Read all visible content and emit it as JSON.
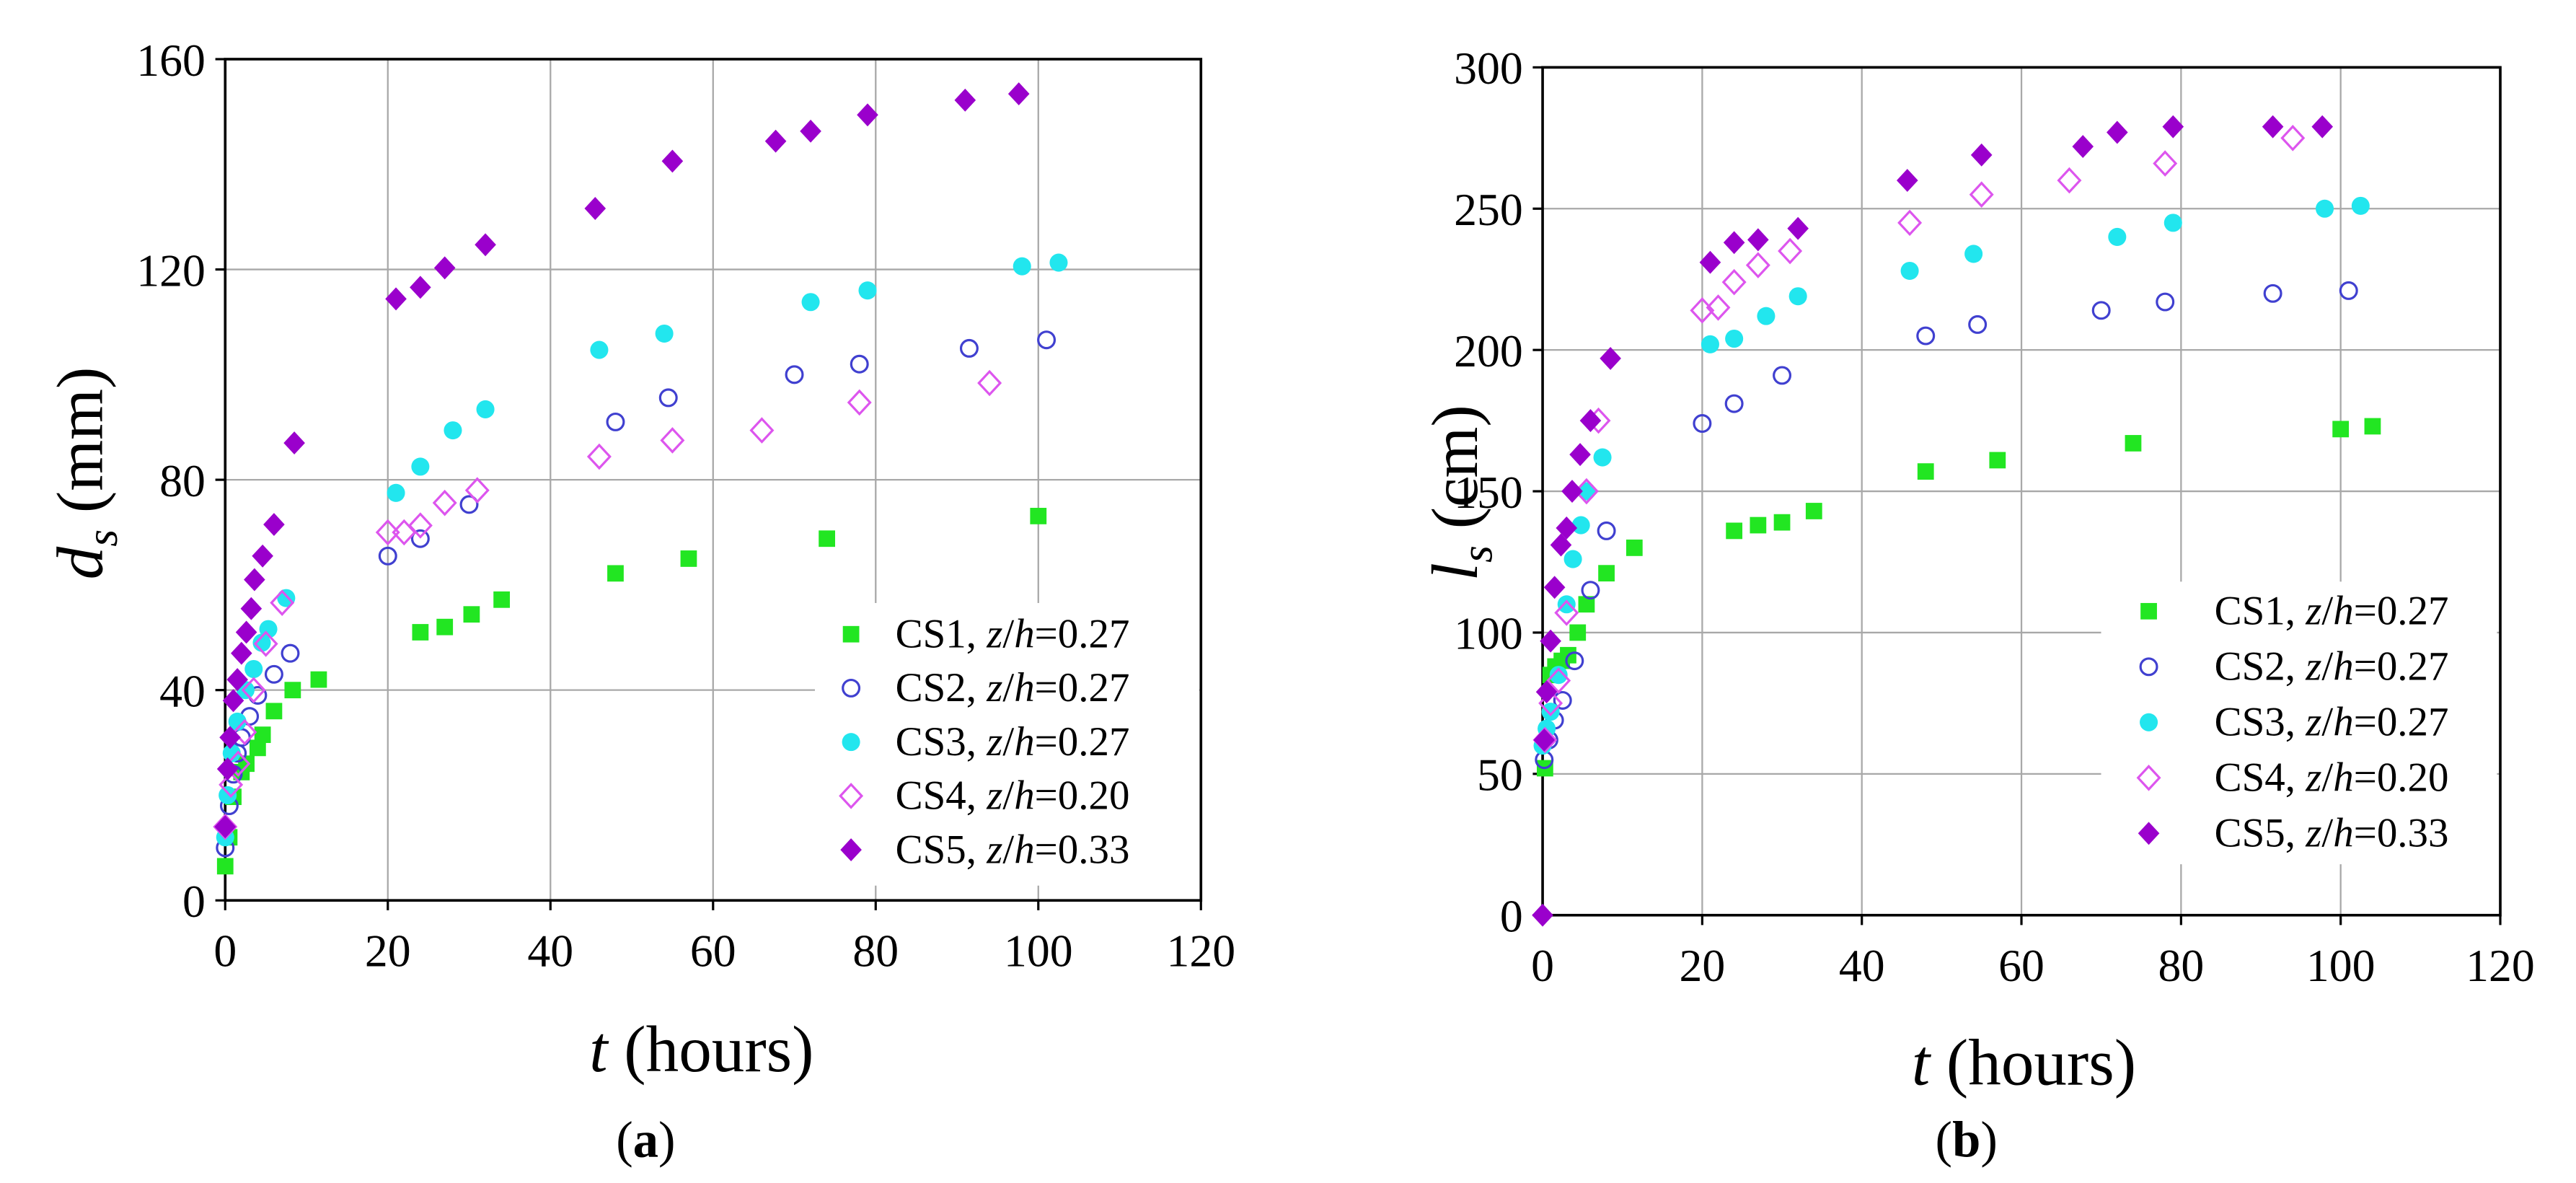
{
  "chart_data": [
    {
      "panel": "(a)",
      "type": "scatter",
      "xlabel": {
        "var": "t",
        "unit": " (hours)"
      },
      "ylabel": {
        "var": "d",
        "sub": "s",
        "unit": " (mm)"
      },
      "xlim": [
        0,
        120
      ],
      "ylim": [
        0,
        160
      ],
      "xticks": [
        0,
        20,
        40,
        60,
        80,
        100,
        120
      ],
      "yticks": [
        0,
        40,
        80,
        120,
        160
      ],
      "grid": true,
      "legend": "bottom-right",
      "series": [
        {
          "name": "CS1, z/h=0.27",
          "marker": "square",
          "filled": true,
          "color": "#22e622",
          "x": [
            0,
            0.5,
            1.0,
            2.0,
            2.6,
            4.0,
            4.6,
            6.0,
            8.3,
            11.5,
            24,
            27,
            30.3,
            34,
            48,
            57,
            74,
            100
          ],
          "y": [
            6.5,
            12,
            19.7,
            24.4,
            26,
            29,
            31.5,
            36,
            40,
            42,
            51,
            52,
            54.4,
            57.2,
            62.2,
            65,
            68.8,
            73.1
          ]
        },
        {
          "name": "CS2, z/h=0.27",
          "marker": "circle",
          "filled": false,
          "color": "#4040d0",
          "x": [
            0,
            0.5,
            1.0,
            1.5,
            2.0,
            3.0,
            4.0,
            6.0,
            8.0,
            20,
            24,
            30,
            48,
            54.5,
            70,
            78,
            91.5,
            101
          ],
          "y": [
            10,
            18,
            24,
            28,
            31,
            35,
            39,
            43,
            47,
            65.5,
            68.8,
            75.3,
            91,
            95.6,
            100,
            102,
            105,
            106.6
          ]
        },
        {
          "name": "CS3, z/h=0.27",
          "marker": "circle",
          "filled": true,
          "color": "#22e6ee",
          "x": [
            0,
            0.3,
            0.8,
            1.5,
            2.5,
            3.5,
            4.5,
            5.3,
            7.5,
            21,
            24,
            28,
            32,
            46,
            54,
            72,
            79,
            98,
            102.5
          ],
          "y": [
            12,
            20,
            28,
            34,
            40,
            44,
            49,
            51.6,
            57.5,
            77.5,
            82.5,
            89.4,
            93.4,
            104.7,
            107.8,
            113.8,
            116,
            120.6,
            121.3
          ]
        },
        {
          "name": "CS4, z/h=0.20",
          "marker": "diamond",
          "filled": false,
          "color": "#dd55ee",
          "x": [
            0,
            0.7,
            1.6,
            2.4,
            3.5,
            5.0,
            7.0,
            20,
            22,
            24,
            27,
            31,
            46,
            55,
            66,
            78,
            94
          ],
          "y": [
            14,
            22,
            26,
            32,
            40,
            48.8,
            56.6,
            70,
            70,
            71.3,
            75.6,
            78,
            84.4,
            87.5,
            89.4,
            94.7,
            98.4
          ]
        },
        {
          "name": "CS5, z/h=0.33",
          "marker": "diamond",
          "filled": true,
          "color": "#9a00cc",
          "x": [
            0,
            0.3,
            0.6,
            1.0,
            1.5,
            2.0,
            2.6,
            3.2,
            3.6,
            4.6,
            6.0,
            8.5,
            21,
            24,
            27,
            32,
            45.5,
            55,
            67.7,
            72,
            79,
            91,
            97.6
          ],
          "y": [
            14,
            25,
            31,
            38,
            42,
            47,
            51,
            55.5,
            61,
            65.5,
            71.5,
            87,
            114.4,
            116.6,
            120.3,
            124.7,
            131.6,
            140.6,
            144.4,
            146.3,
            149.4,
            152.2,
            153.4
          ]
        }
      ]
    },
    {
      "panel": "(b)",
      "type": "scatter",
      "xlabel": {
        "var": "t",
        "unit": " (hours)"
      },
      "ylabel": {
        "var": "l",
        "sub": "s",
        "unit": " (cm)"
      },
      "xlim": [
        0,
        120
      ],
      "ylim": [
        0,
        300
      ],
      "xticks": [
        0,
        20,
        40,
        60,
        80,
        100,
        120
      ],
      "yticks": [
        0,
        50,
        100,
        150,
        200,
        250,
        300
      ],
      "grid": true,
      "legend": "bottom-right",
      "series": [
        {
          "name": "CS1, z/h=0.27",
          "marker": "square",
          "filled": true,
          "color": "#22e622",
          "x": [
            0.3,
            1.0,
            1.6,
            2.4,
            3.2,
            4.4,
            5.5,
            8.0,
            11.5,
            24,
            27,
            30,
            34,
            48,
            57,
            74,
            100,
            104
          ],
          "y": [
            52,
            85,
            88,
            90,
            92,
            100,
            110,
            121,
            130,
            136,
            138,
            139,
            143,
            157,
            161,
            167,
            172,
            173
          ]
        },
        {
          "name": "CS2, z/h=0.27",
          "marker": "circle",
          "filled": false,
          "color": "#4040d0",
          "x": [
            0.2,
            0.8,
            1.5,
            2.5,
            4.0,
            6.0,
            8.0,
            20,
            24,
            30,
            48,
            54.5,
            70,
            78,
            91.5,
            101
          ],
          "y": [
            55,
            62,
            69,
            76,
            90,
            115,
            136,
            174,
            181,
            191,
            205,
            209,
            214,
            217,
            220,
            221
          ]
        },
        {
          "name": "CS3, z/h=0.27",
          "marker": "circle",
          "filled": true,
          "color": "#22e6ee",
          "x": [
            0,
            0.5,
            1.0,
            2.0,
            3.0,
            3.8,
            4.8,
            5.5,
            7.5,
            21,
            24,
            28,
            32,
            46,
            54,
            72,
            79,
            98,
            102.5
          ],
          "y": [
            60,
            66,
            72,
            85,
            110,
            126,
            138,
            150,
            162,
            202,
            204,
            212,
            219,
            228,
            234,
            240,
            245,
            250,
            251
          ]
        },
        {
          "name": "CS4, z/h=0.20",
          "marker": "diamond",
          "filled": false,
          "color": "#dd55ee",
          "x": [
            0.3,
            1.0,
            2.0,
            3.0,
            5.5,
            7.0,
            20,
            22,
            24,
            27,
            31,
            46,
            55,
            66,
            78,
            94
          ],
          "y": [
            62,
            75,
            83,
            107,
            150,
            175,
            214,
            215,
            224,
            230,
            235,
            245,
            255,
            260,
            266,
            275
          ]
        },
        {
          "name": "CS5, z/h=0.33",
          "marker": "diamond",
          "filled": true,
          "color": "#9a00cc",
          "x": [
            0,
            0.2,
            0.5,
            1.0,
            1.5,
            2.3,
            3.0,
            3.7,
            4.7,
            6.0,
            8.5,
            21,
            24,
            27,
            32,
            45.7,
            55,
            67.7,
            72,
            79,
            91.5,
            97.7
          ],
          "y": [
            0,
            62,
            79,
            97,
            116,
            131,
            137,
            150,
            163,
            175,
            197,
            231,
            238,
            239,
            243,
            260,
            269,
            272,
            277,
            279,
            279,
            279
          ]
        }
      ]
    }
  ]
}
